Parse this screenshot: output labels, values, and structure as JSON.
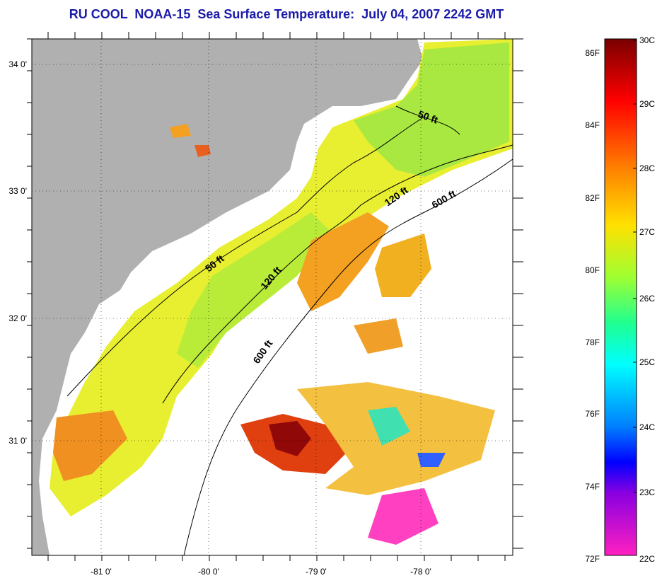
{
  "title": "RU COOL  NOAA-15  Sea Surface Temperature:  July 04, 2007 2242 GMT",
  "map": {
    "lat_labels": [
      "34 0'",
      "33 0'",
      "32 0'",
      "31 0'"
    ],
    "lon_labels": [
      "-81 0'",
      "-80 0'",
      "-79 0'",
      "-78 0'"
    ],
    "contour_labels": [
      {
        "text": "50 ft",
        "rotate": 20
      },
      {
        "text": "50 ft",
        "rotate": -38
      },
      {
        "text": "120 ft",
        "rotate": -35
      },
      {
        "text": "120 ft",
        "rotate": -50
      },
      {
        "text": "600 ft",
        "rotate": -30
      },
      {
        "text": "600 ft",
        "rotate": -55
      }
    ],
    "colors": {
      "land": "#b0b0b0",
      "cloud": "#ffffff"
    }
  },
  "colorbar": {
    "fahrenheit_labels": [
      "86F",
      "84F",
      "82F",
      "80F",
      "78F",
      "76F",
      "74F",
      "72F"
    ],
    "celsius_labels": [
      "30C",
      "29C",
      "28C",
      "27C",
      "26C",
      "25C",
      "24C",
      "23C",
      "22C"
    ],
    "gradient": [
      "#800000",
      "#ff0000",
      "#ff8000",
      "#ffff00",
      "#00ff80",
      "#00ffff",
      "#0080ff",
      "#0000ff",
      "#8000ff",
      "#ff00ff"
    ]
  }
}
